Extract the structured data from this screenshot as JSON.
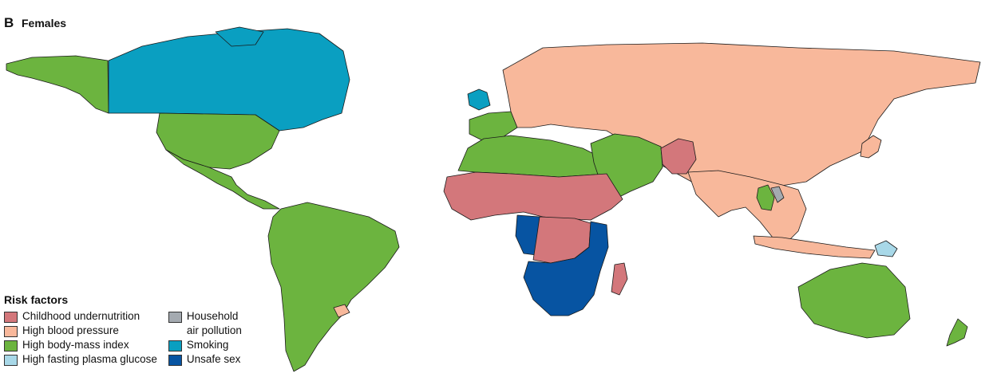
{
  "panel": {
    "label": "B",
    "title": "Females"
  },
  "legend": {
    "title": "Risk factors",
    "columns": [
      [
        {
          "label": "Childhood undernutrition",
          "color": "#d3777b"
        },
        {
          "label": "High blood pressure",
          "color": "#f8b89b"
        },
        {
          "label": "High body-mass index",
          "color": "#6cb43f"
        },
        {
          "label": "High fasting plasma glucose",
          "color": "#a8d8e8"
        }
      ],
      [
        {
          "label": "Household",
          "label_line2": "air pollution",
          "color": "#a4aab0"
        },
        {
          "label": "Smoking",
          "color": "#0a9fc1"
        },
        {
          "label": "Unsafe sex",
          "color": "#0754a2"
        }
      ]
    ]
  },
  "colors": {
    "childhood_undernutrition": "#d3777b",
    "high_blood_pressure": "#f8b89b",
    "high_body_mass_index": "#6cb43f",
    "high_fasting_plasma_glucose": "#a8d8e8",
    "household_air_pollution": "#a4aab0",
    "smoking": "#0a9fc1",
    "unsafe_sex": "#0754a2"
  },
  "regions": [
    {
      "name": "alaska",
      "factor": "high_body_mass_index"
    },
    {
      "name": "canada",
      "factor": "smoking"
    },
    {
      "name": "greenland",
      "factor": "smoking"
    },
    {
      "name": "usa",
      "factor": "high_body_mass_index"
    },
    {
      "name": "mexico-central-america",
      "factor": "high_body_mass_index"
    },
    {
      "name": "south-america",
      "factor": "high_body_mass_index"
    },
    {
      "name": "uruguay",
      "factor": "high_blood_pressure"
    },
    {
      "name": "uk-ireland",
      "factor": "smoking"
    },
    {
      "name": "iberia-france",
      "factor": "high_body_mass_index"
    },
    {
      "name": "russia-europe-asia",
      "factor": "high_blood_pressure"
    },
    {
      "name": "north-africa",
      "factor": "high_body_mass_index"
    },
    {
      "name": "middle-east",
      "factor": "high_body_mass_index"
    },
    {
      "name": "pakistan-afghanistan",
      "factor": "childhood_undernutrition"
    },
    {
      "name": "india-southeast-asia",
      "factor": "high_blood_pressure"
    },
    {
      "name": "thailand",
      "factor": "high_body_mass_index"
    },
    {
      "name": "laos",
      "factor": "household_air_pollution"
    },
    {
      "name": "japan",
      "factor": "high_blood_pressure"
    },
    {
      "name": "indonesia",
      "factor": "high_blood_pressure"
    },
    {
      "name": "papua-new-guinea",
      "factor": "high_fasting_plasma_glucose"
    },
    {
      "name": "sahel-central-africa",
      "factor": "childhood_undernutrition"
    },
    {
      "name": "west-central-africa",
      "factor": "unsafe_sex"
    },
    {
      "name": "drc",
      "factor": "childhood_undernutrition"
    },
    {
      "name": "east-southern-africa",
      "factor": "unsafe_sex"
    },
    {
      "name": "madagascar",
      "factor": "childhood_undernutrition"
    },
    {
      "name": "australia",
      "factor": "high_body_mass_index"
    },
    {
      "name": "new-zealand",
      "factor": "high_body_mass_index"
    }
  ]
}
